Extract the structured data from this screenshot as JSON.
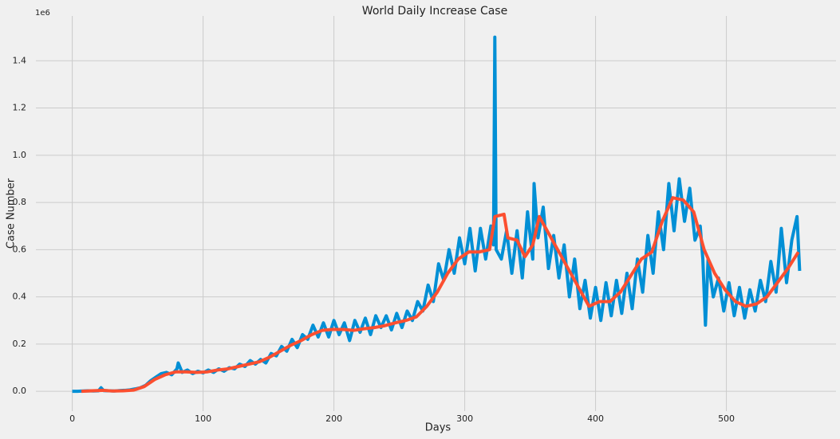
{
  "chart_data": {
    "type": "line",
    "title": "World Daily Increase Case",
    "xlabel": "Days",
    "ylabel": "Case Number",
    "y_offset_label": "1e6",
    "xlim": [
      -27.8,
      583.8
    ],
    "xticks": [
      0,
      100,
      200,
      300,
      400,
      500
    ],
    "ylim": [
      -84000,
      1590000
    ],
    "yticks": [
      {
        "value": 0,
        "label": "0.0"
      },
      {
        "value": 200000,
        "label": "0.2"
      },
      {
        "value": 400000,
        "label": "0.4"
      },
      {
        "value": 600000,
        "label": "0.6"
      },
      {
        "value": 800000,
        "label": "0.8"
      },
      {
        "value": 1000000,
        "label": "1.0"
      },
      {
        "value": 1200000,
        "label": "1.2"
      },
      {
        "value": 1400000,
        "label": "1.4"
      }
    ],
    "grid": true,
    "series": [
      {
        "color": "#008fd5",
        "x": [
          0,
          4,
          8,
          12,
          16,
          20,
          22,
          24,
          28,
          32,
          36,
          40,
          44,
          48,
          52,
          56,
          60,
          64,
          68,
          72,
          76,
          80,
          81,
          84,
          88,
          92,
          96,
          100,
          104,
          108,
          112,
          116,
          120,
          124,
          128,
          132,
          136,
          140,
          144,
          148,
          152,
          156,
          160,
          164,
          168,
          172,
          176,
          180,
          184,
          188,
          192,
          196,
          200,
          204,
          208,
          212,
          216,
          220,
          224,
          228,
          232,
          236,
          240,
          244,
          248,
          252,
          256,
          260,
          264,
          268,
          272,
          276,
          280,
          284,
          288,
          292,
          296,
          300,
          304,
          308,
          312,
          316,
          320,
          322,
          323,
          324,
          328,
          332,
          336,
          340,
          344,
          348,
          352,
          353,
          356,
          360,
          364,
          368,
          372,
          376,
          380,
          384,
          388,
          392,
          396,
          400,
          404,
          408,
          412,
          416,
          420,
          424,
          428,
          432,
          436,
          440,
          444,
          448,
          452,
          456,
          460,
          464,
          468,
          472,
          476,
          480,
          482,
          484,
          486,
          490,
          494,
          498,
          502,
          506,
          510,
          514,
          518,
          522,
          526,
          530,
          534,
          538,
          542,
          546,
          550,
          554,
          556
        ],
        "values": [
          0,
          0,
          1000,
          2000,
          1000,
          2000,
          15000,
          3000,
          2000,
          1000,
          3000,
          4000,
          6000,
          10000,
          15000,
          25000,
          45000,
          60000,
          75000,
          80000,
          70000,
          95000,
          120000,
          80000,
          90000,
          75000,
          85000,
          78000,
          90000,
          80000,
          95000,
          85000,
          100000,
          95000,
          115000,
          105000,
          130000,
          115000,
          135000,
          120000,
          160000,
          150000,
          190000,
          170000,
          220000,
          185000,
          240000,
          220000,
          280000,
          230000,
          290000,
          230000,
          300000,
          240000,
          290000,
          215000,
          300000,
          250000,
          310000,
          240000,
          320000,
          270000,
          320000,
          260000,
          330000,
          270000,
          340000,
          300000,
          380000,
          340000,
          450000,
          380000,
          540000,
          470000,
          600000,
          500000,
          650000,
          540000,
          690000,
          510000,
          690000,
          560000,
          700000,
          620000,
          1500000,
          600000,
          560000,
          680000,
          500000,
          680000,
          480000,
          760000,
          560000,
          880000,
          650000,
          780000,
          520000,
          660000,
          480000,
          620000,
          400000,
          560000,
          350000,
          470000,
          310000,
          440000,
          300000,
          460000,
          320000,
          470000,
          330000,
          500000,
          350000,
          560000,
          420000,
          660000,
          500000,
          760000,
          600000,
          880000,
          680000,
          900000,
          720000,
          860000,
          640000,
          700000,
          560000,
          280000,
          560000,
          400000,
          480000,
          340000,
          460000,
          320000,
          440000,
          310000,
          430000,
          340000,
          470000,
          380000,
          550000,
          420000,
          690000,
          460000,
          640000,
          740000,
          510000
        ]
      },
      {
        "color": "#fc4f30",
        "x": [
          7,
          15,
          23,
          31,
          39,
          47,
          55,
          63,
          71,
          79,
          87,
          95,
          103,
          111,
          119,
          127,
          135,
          143,
          151,
          159,
          167,
          175,
          183,
          191,
          199,
          207,
          215,
          223,
          231,
          239,
          247,
          255,
          263,
          271,
          279,
          287,
          295,
          303,
          311,
          319,
          323,
          330,
          333,
          340,
          346,
          352,
          357,
          363,
          371,
          379,
          387,
          395,
          403,
          411,
          419,
          427,
          435,
          443,
          451,
          459,
          467,
          475,
          483,
          491,
          499,
          507,
          515,
          523,
          531,
          539,
          547,
          555
        ],
        "values": [
          0,
          2000,
          4000,
          1000,
          2000,
          5000,
          20000,
          50000,
          70000,
          82000,
          82000,
          80000,
          82000,
          90000,
          95000,
          105000,
          115000,
          125000,
          145000,
          170000,
          195000,
          215000,
          240000,
          258000,
          262000,
          262000,
          258000,
          265000,
          270000,
          278000,
          290000,
          300000,
          315000,
          360000,
          420000,
          500000,
          560000,
          590000,
          590000,
          600000,
          740000,
          750000,
          650000,
          640000,
          570000,
          620000,
          740000,
          680000,
          600000,
          520000,
          440000,
          360000,
          380000,
          380000,
          420000,
          490000,
          560000,
          590000,
          720000,
          820000,
          810000,
          760000,
          600000,
          500000,
          430000,
          380000,
          360000,
          370000,
          400000,
          460000,
          520000,
          590000
        ]
      }
    ]
  }
}
